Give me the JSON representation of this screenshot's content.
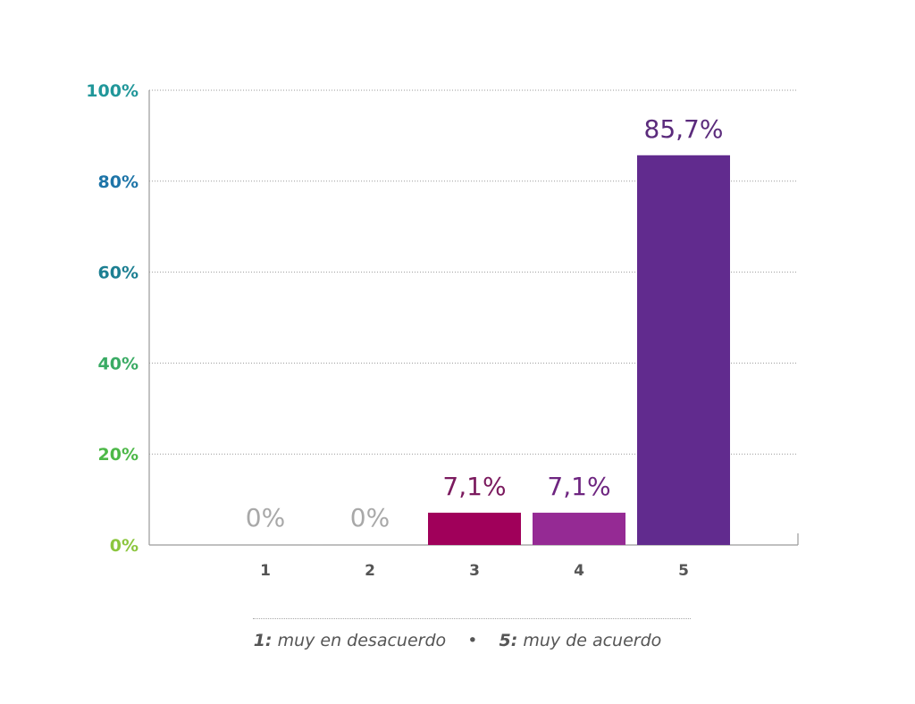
{
  "chart_data": {
    "type": "bar",
    "categories": [
      "1",
      "2",
      "3",
      "4",
      "5"
    ],
    "values": [
      0,
      0,
      7.1,
      7.1,
      85.7
    ],
    "value_labels": [
      "0%",
      "0%",
      "7,1%",
      "7,1%",
      "85,7%"
    ],
    "bar_colors": [
      "#bfbfbf",
      "#bfbfbf",
      "#a0005a",
      "#952a94",
      "#612b8e"
    ],
    "label_colors": [
      "#a8a8a8",
      "#a8a8a8",
      "#7b1a5e",
      "#6e2580",
      "#5b2b7c"
    ],
    "ylim": [
      0,
      100
    ],
    "yticks": [
      0,
      20,
      40,
      60,
      80,
      100
    ],
    "ytick_labels": [
      "0%",
      "20%",
      "40%",
      "60%",
      "80%",
      "100%"
    ],
    "ytick_colors": [
      "#8cc63f",
      "#4db848",
      "#3aab64",
      "#1c7f92",
      "#1e75a8",
      "#21979a"
    ],
    "grid": true,
    "xlabel": "",
    "ylabel": "",
    "title": ""
  },
  "legend": {
    "low_key": "1:",
    "low_text": "muy en desacuerdo",
    "separator": "•",
    "high_key": "5:",
    "high_text": "muy de acuerdo"
  }
}
